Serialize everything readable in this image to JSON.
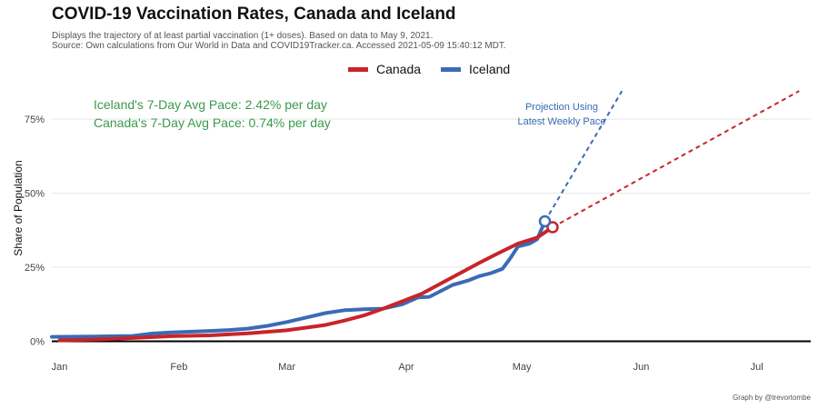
{
  "title": "COVID-19 Vaccination Rates, Canada and Iceland",
  "subtitle_lines": [
    "Displays the trajectory of at least partial vaccination (1+ doses). Based on data to May 9, 2021.",
    "Source: Own calculations from Our World in Data and COVID19Tracker.ca. Accessed 2021-05-09 15:40:12 MDT."
  ],
  "caption": "Graph by @trevortombe",
  "colors": {
    "canada": "#c8242b",
    "iceland": "#3a6bb5",
    "annotation_green": "#3a9a4a",
    "grid": "#e6e6e6",
    "axis": "#000000"
  },
  "chart_data": {
    "type": "line",
    "title": "COVID-19 Vaccination Rates, Canada and Iceland",
    "xlabel": "",
    "ylabel": "Share of Population",
    "x_unit": "day of year 2021",
    "xlim": [
      -1,
      196
    ],
    "ylim": [
      -2,
      87
    ],
    "y_ticks": [
      0,
      25,
      50,
      75
    ],
    "y_tick_labels": [
      "0%",
      "25%",
      "50%",
      "75%"
    ],
    "x_ticks": [
      1,
      32,
      60,
      91,
      121,
      152,
      182
    ],
    "x_tick_labels": [
      "Jan",
      "Feb",
      "Mar",
      "Apr",
      "May",
      "Jun",
      "Jul"
    ],
    "grid": true,
    "legend_position": "top",
    "series": [
      {
        "name": "Canada",
        "color": "#c8242b",
        "x": [
          1,
          10,
          20,
          30,
          40,
          50,
          60,
          70,
          75,
          80,
          85,
          90,
          95,
          100,
          105,
          110,
          115,
          120,
          125,
          129
        ],
        "y": [
          0.3,
          0.6,
          1.1,
          1.7,
          2.0,
          2.7,
          3.7,
          5.5,
          7.0,
          8.7,
          11,
          13.5,
          16,
          19.5,
          23,
          26.5,
          29.8,
          33,
          35,
          38.5
        ]
      },
      {
        "name": "Iceland",
        "color": "#3a6bb5",
        "x": [
          -1,
          10,
          20,
          25,
          30,
          40,
          45,
          50,
          55,
          60,
          65,
          70,
          75,
          80,
          85,
          90,
          94,
          97,
          100,
          103,
          107,
          110,
          113,
          116,
          118,
          120,
          123,
          125,
          127
        ],
        "y": [
          1.5,
          1.6,
          1.8,
          2.6,
          3.0,
          3.5,
          3.8,
          4.3,
          5.2,
          6.5,
          8.0,
          9.5,
          10.5,
          10.8,
          11.0,
          12.5,
          14.8,
          15.0,
          17.0,
          19.0,
          20.5,
          22.0,
          23.0,
          24.5,
          28.0,
          32.0,
          33.0,
          34.5,
          40.5
        ]
      }
    ],
    "projections": [
      {
        "name": "Canada",
        "x": [
          129,
          193
        ],
        "y": [
          38.5,
          84.5
        ]
      },
      {
        "name": "Iceland",
        "x": [
          127,
          147
        ],
        "y": [
          40.5,
          84.5
        ]
      }
    ],
    "end_points": [
      {
        "name": "Canada",
        "x": 129,
        "y": 38.5
      },
      {
        "name": "Iceland",
        "x": 127,
        "y": 40.5
      }
    ],
    "annotations": {
      "iceland_pace": "Iceland's 7-Day Avg Pace: 2.42% per day",
      "canada_pace": "Canada's 7-Day Avg Pace: 0.74% per day",
      "projection_line1": "Projection Using",
      "projection_line2": "Latest Weekly Pace"
    }
  }
}
